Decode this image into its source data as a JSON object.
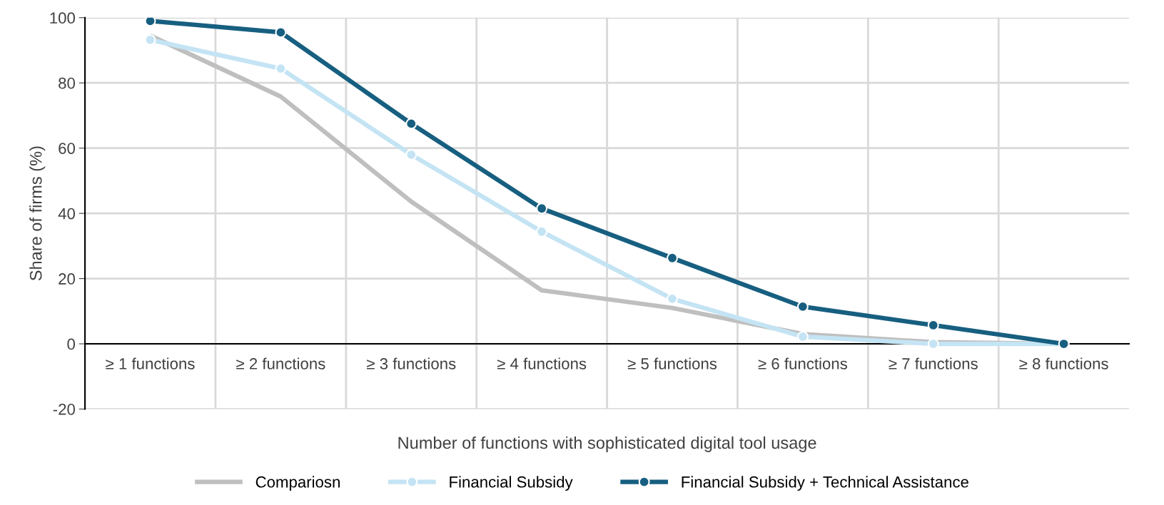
{
  "chart_data": {
    "type": "line",
    "xlabel": "Number of functions with sophisticated digital tool usage",
    "ylabel": "Share of firms (%)",
    "categories": [
      "≥ 1 functions",
      "≥ 2 functions",
      "≥ 3 functions",
      "≥ 4 functions",
      "≥ 5 functions",
      "≥ 6 functions",
      "≥ 7 functions",
      "≥ 8 functions"
    ],
    "series": [
      {
        "name": "Compariosn",
        "color": "#bfbfbf",
        "marker": "none",
        "values": [
          94.5,
          75.8,
          43.6,
          16.4,
          11,
          3,
          0.5,
          0
        ]
      },
      {
        "name": "Financial Subsidy",
        "color": "#c4e4f4",
        "marker": "circle",
        "values": [
          93.2,
          84.4,
          58,
          34.4,
          13.8,
          2.2,
          0,
          0
        ]
      },
      {
        "name": "Financial Subsidy + Technical Assistance",
        "color": "#175f80",
        "marker": "circle",
        "values": [
          99,
          95.5,
          67.5,
          41.5,
          26.3,
          11.4,
          5.7,
          0
        ]
      }
    ],
    "ylim": [
      -20,
      100
    ],
    "yticks": [
      -20,
      0,
      20,
      40,
      60,
      80,
      100
    ],
    "grid": true,
    "legend": "bottom"
  }
}
